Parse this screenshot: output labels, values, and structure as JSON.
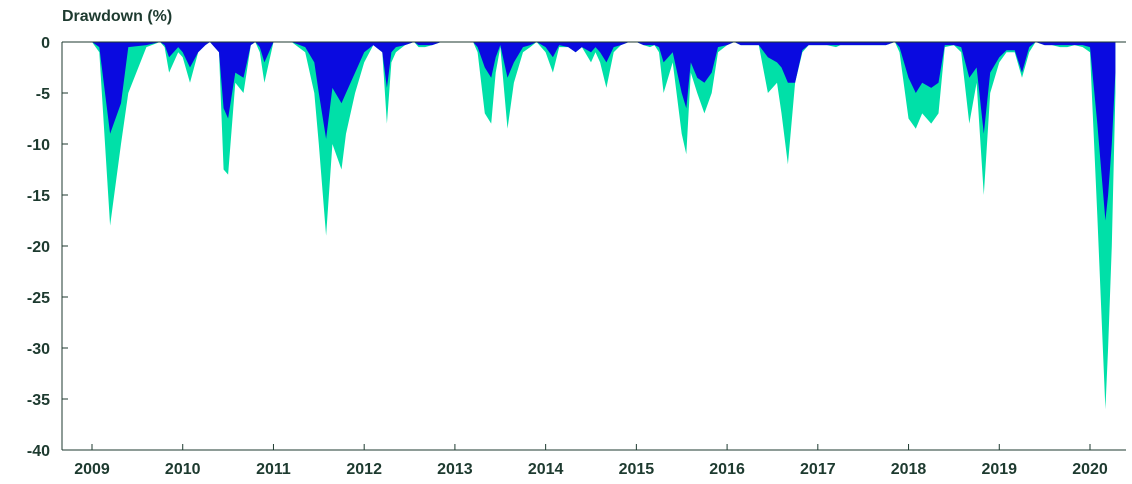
{
  "chart_data": {
    "type": "area",
    "title": "",
    "ylabel": "Drawdown (%)",
    "xlabel": "",
    "ylim": [
      -40,
      0
    ],
    "xlim": [
      2009,
      2020.4
    ],
    "yticks": [
      0,
      -5,
      -10,
      -15,
      -20,
      -25,
      -30,
      -35,
      -40
    ],
    "xticks": [
      "2009",
      "2010",
      "2011",
      "2012",
      "2013",
      "2014",
      "2015",
      "2016",
      "2017",
      "2018",
      "2019",
      "2020"
    ],
    "grid": false,
    "colors": {
      "teal": "#00e0a8",
      "blue": "#0a0ae0",
      "axis": "#1d3a2f"
    },
    "series": [
      {
        "color": "teal",
        "x": [
          2009.0,
          2009.08,
          2009.2,
          2009.32,
          2009.4,
          2009.6,
          2009.75,
          2009.8,
          2009.85,
          2009.95,
          2010.0,
          2010.08,
          2010.17,
          2010.25,
          2010.3,
          2010.4,
          2010.45,
          2010.5,
          2010.58,
          2010.67,
          2010.75,
          2010.8,
          2010.85,
          2010.9,
          2011.0,
          2011.2,
          2011.35,
          2011.45,
          2011.5,
          2011.58,
          2011.65,
          2011.75,
          2011.8,
          2011.9,
          2012.0,
          2012.1,
          2012.2,
          2012.25,
          2012.3,
          2012.35,
          2012.45,
          2012.55,
          2012.6,
          2012.67,
          2012.75,
          2012.85,
          2012.95,
          2013.2,
          2013.25,
          2013.33,
          2013.4,
          2013.45,
          2013.5,
          2013.58,
          2013.65,
          2013.75,
          2013.83,
          2013.9,
          2014.0,
          2014.08,
          2014.15,
          2014.25,
          2014.33,
          2014.4,
          2014.5,
          2014.55,
          2014.6,
          2014.67,
          2014.75,
          2014.83,
          2014.92,
          2015.0,
          2015.08,
          2015.15,
          2015.2,
          2015.25,
          2015.3,
          2015.4,
          2015.5,
          2015.55,
          2015.6,
          2015.67,
          2015.75,
          2015.83,
          2015.9,
          2016.0,
          2016.08,
          2016.15,
          2016.25,
          2016.35,
          2016.45,
          2016.55,
          2016.6,
          2016.67,
          2016.75,
          2016.83,
          2016.9,
          2017.0,
          2017.1,
          2017.2,
          2017.25,
          2017.33,
          2017.4,
          2017.5,
          2017.58,
          2017.67,
          2017.75,
          2017.85,
          2017.9,
          2018.0,
          2018.08,
          2018.15,
          2018.25,
          2018.33,
          2018.4,
          2018.5,
          2018.58,
          2018.67,
          2018.75,
          2018.83,
          2018.9,
          2019.0,
          2019.08,
          2019.17,
          2019.25,
          2019.33,
          2019.4,
          2019.5,
          2019.58,
          2019.67,
          2019.75,
          2019.83,
          2019.92,
          2020.0,
          2020.08,
          2020.17,
          2020.2,
          2020.24,
          2020.28
        ],
        "values": [
          0,
          -1,
          -18,
          -10,
          -5,
          -0.5,
          0,
          -0.5,
          -3,
          -1,
          -1.5,
          -4,
          -1,
          -0.3,
          0,
          -1,
          -12.5,
          -13,
          -4,
          -5,
          -0.3,
          0,
          -1,
          -4,
          0,
          0,
          -1,
          -5,
          -10,
          -19,
          -10,
          -12.5,
          -9,
          -5,
          -2,
          -0.3,
          -1,
          -8,
          -2,
          -1,
          -0.3,
          0,
          -0.5,
          -0.5,
          -0.3,
          0,
          0,
          0,
          -1,
          -7,
          -8,
          -3,
          -0.5,
          -8.5,
          -4,
          -1,
          -0.5,
          0,
          -1,
          -3,
          -0.5,
          -0.5,
          -1,
          -0.5,
          -2,
          -1,
          -2,
          -4.5,
          -1,
          -0.3,
          0,
          0,
          -0.3,
          -0.5,
          -0.3,
          -1,
          -5,
          -2,
          -9,
          -11,
          -3,
          -5,
          -7,
          -5,
          -1,
          -0.3,
          0,
          -0.3,
          -0.3,
          -0.3,
          -5,
          -4,
          -7,
          -12,
          -4,
          -1,
          -0.3,
          -0.3,
          -0.3,
          -0.5,
          -0.3,
          -0.3,
          -0.3,
          -0.3,
          -0.3,
          -0.3,
          -0.3,
          0,
          -1,
          -7.5,
          -8.5,
          -7,
          -8,
          -7,
          -0.5,
          -0.3,
          -1,
          -8,
          -4,
          -15,
          -5,
          -2,
          -1,
          -1,
          -3.5,
          -1,
          0,
          -0.3,
          -0.3,
          -0.5,
          -0.5,
          -0.3,
          -0.5,
          -1,
          -17,
          -36,
          -30,
          -20,
          -5
        ]
      },
      {
        "color": "blue",
        "x": [
          2009.0,
          2009.08,
          2009.2,
          2009.32,
          2009.4,
          2009.6,
          2009.75,
          2009.8,
          2009.85,
          2009.95,
          2010.0,
          2010.08,
          2010.17,
          2010.25,
          2010.3,
          2010.4,
          2010.45,
          2010.5,
          2010.58,
          2010.67,
          2010.75,
          2010.8,
          2010.85,
          2010.9,
          2011.0,
          2011.2,
          2011.35,
          2011.45,
          2011.5,
          2011.58,
          2011.65,
          2011.75,
          2011.8,
          2011.9,
          2012.0,
          2012.1,
          2012.2,
          2012.25,
          2012.3,
          2012.35,
          2012.45,
          2012.55,
          2012.6,
          2012.67,
          2012.75,
          2012.85,
          2012.95,
          2013.2,
          2013.25,
          2013.33,
          2013.4,
          2013.45,
          2013.5,
          2013.58,
          2013.65,
          2013.75,
          2013.83,
          2013.9,
          2014.0,
          2014.08,
          2014.15,
          2014.25,
          2014.33,
          2014.4,
          2014.5,
          2014.55,
          2014.6,
          2014.67,
          2014.75,
          2014.83,
          2014.92,
          2015.0,
          2015.08,
          2015.15,
          2015.2,
          2015.25,
          2015.3,
          2015.4,
          2015.5,
          2015.55,
          2015.6,
          2015.67,
          2015.75,
          2015.83,
          2015.9,
          2016.0,
          2016.08,
          2016.15,
          2016.25,
          2016.35,
          2016.45,
          2016.55,
          2016.6,
          2016.67,
          2016.75,
          2016.83,
          2016.9,
          2017.0,
          2017.1,
          2017.2,
          2017.25,
          2017.33,
          2017.4,
          2017.5,
          2017.58,
          2017.67,
          2017.75,
          2017.85,
          2017.9,
          2018.0,
          2018.08,
          2018.15,
          2018.25,
          2018.33,
          2018.4,
          2018.5,
          2018.58,
          2018.67,
          2018.75,
          2018.83,
          2018.9,
          2019.0,
          2019.08,
          2019.17,
          2019.25,
          2019.33,
          2019.4,
          2019.5,
          2019.58,
          2019.67,
          2019.75,
          2019.83,
          2019.92,
          2020.0,
          2020.08,
          2020.17,
          2020.2,
          2020.24,
          2020.28
        ],
        "values": [
          0,
          -0.5,
          -9,
          -6,
          -0.5,
          -0.3,
          0,
          -0.3,
          -1.5,
          -0.5,
          -1,
          -2.5,
          -1,
          -0.3,
          0,
          -1,
          -6.5,
          -7.5,
          -3,
          -3.5,
          -0.3,
          0,
          -0.5,
          -2,
          0,
          0,
          -0.5,
          -2,
          -5,
          -9.5,
          -4.5,
          -6,
          -5,
          -3,
          -1,
          -0.3,
          -1,
          -4.5,
          -1,
          -0.5,
          -0.3,
          0,
          -0.3,
          -0.3,
          -0.3,
          0,
          0,
          0,
          -0.5,
          -2.5,
          -3.5,
          -1.5,
          -0.3,
          -3.5,
          -2,
          -0.5,
          -0.3,
          0,
          -0.5,
          -1.5,
          -0.3,
          -0.5,
          -1,
          -0.5,
          -1,
          -0.5,
          -1,
          -2,
          -0.5,
          -0.3,
          0,
          0,
          -0.3,
          -0.3,
          -0.3,
          -0.5,
          -2,
          -1,
          -5,
          -6.5,
          -2,
          -3.5,
          -4,
          -3,
          -0.5,
          -0.3,
          0,
          -0.3,
          -0.3,
          -0.3,
          -1.5,
          -2,
          -2.5,
          -4,
          -4,
          -0.8,
          -0.3,
          -0.3,
          -0.3,
          -0.3,
          -0.3,
          -0.3,
          -0.3,
          -0.3,
          -0.3,
          -0.3,
          -0.3,
          0,
          -0.5,
          -3.5,
          -5,
          -4,
          -4.5,
          -4,
          -0.3,
          -0.3,
          -0.5,
          -3.5,
          -2.5,
          -9,
          -3,
          -1.5,
          -0.8,
          -0.8,
          -3,
          -0.5,
          0,
          -0.3,
          -0.3,
          -0.3,
          -0.3,
          -0.3,
          -0.3,
          -0.5,
          -8,
          -17.5,
          -15,
          -10,
          -3
        ]
      }
    ]
  }
}
